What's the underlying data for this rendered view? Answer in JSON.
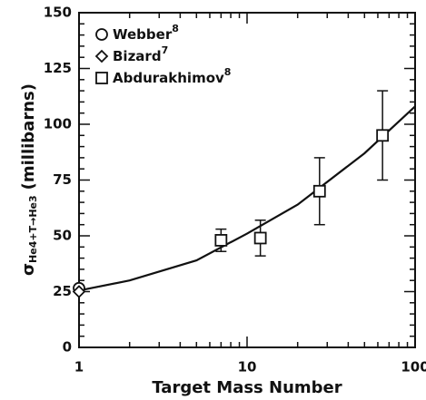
{
  "chart_data": {
    "type": "scatter",
    "x_label": "Target Mass Number",
    "y_label_symbol": "σ",
    "y_label_subscript": "He4+T→He3",
    "y_label_unit": "(millibarns)",
    "xscale": "log",
    "xlim": [
      1,
      100
    ],
    "xticks": [
      1,
      10,
      100
    ],
    "xminor": [
      2,
      3,
      4,
      5,
      6,
      7,
      8,
      9,
      20,
      30,
      40,
      50,
      60,
      70,
      80,
      90
    ],
    "ylim": [
      0,
      150
    ],
    "yticks": [
      0,
      25,
      50,
      75,
      100,
      125,
      150
    ],
    "yminor": [
      5,
      10,
      15,
      20,
      30,
      35,
      40,
      45,
      55,
      60,
      65,
      70,
      80,
      85,
      90,
      95,
      105,
      110,
      115,
      120,
      130,
      135,
      140,
      145
    ],
    "legend": "upper left",
    "color": "#111111",
    "series": [
      {
        "name": "Webber",
        "superscript": "8",
        "marker": "circle",
        "x": [
          1
        ],
        "values": [
          26.5
        ]
      },
      {
        "name": "Bizard",
        "superscript": "7",
        "marker": "diamond",
        "x": [
          1
        ],
        "values": [
          25
        ]
      },
      {
        "name": "Abdurakhimov",
        "superscript": "8",
        "marker": "square",
        "x": [
          7,
          12,
          27,
          64
        ],
        "values": [
          48,
          49,
          70,
          95
        ],
        "errors": [
          5,
          8,
          15,
          20
        ]
      }
    ],
    "fit": {
      "x": [
        1,
        2,
        5,
        10,
        20,
        50,
        100
      ],
      "y": [
        25.5,
        30,
        39,
        51,
        64,
        87,
        108
      ]
    }
  }
}
